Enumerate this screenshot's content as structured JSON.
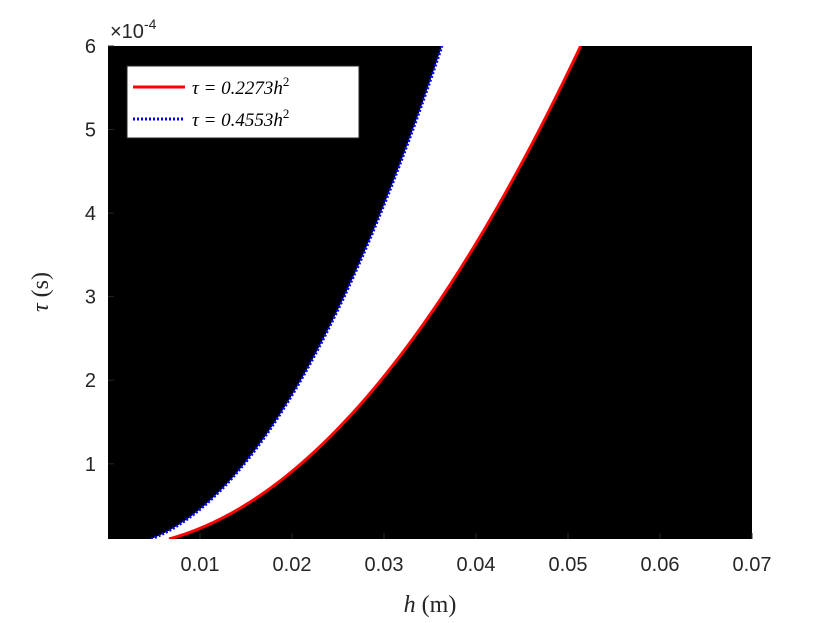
{
  "chart_data": {
    "type": "area",
    "xlabel_var": "h",
    "xlabel_unit": "(m)",
    "ylabel_var": "τ",
    "ylabel_unit": "(s)",
    "y_exponent_prefix": "×10",
    "y_exponent_power": "-4",
    "xlim": [
      0,
      0.07
    ],
    "ylim": [
      1e-05,
      0.0006
    ],
    "x_ticks": [
      0.01,
      0.02,
      0.03,
      0.04,
      0.05,
      0.06,
      0.07
    ],
    "x_tick_labels": [
      "0.01",
      "0.02",
      "0.03",
      "0.04",
      "0.05",
      "0.06",
      "0.07"
    ],
    "y_ticks": [
      0.0001,
      0.0002,
      0.0003,
      0.0004,
      0.0005,
      0.0006
    ],
    "y_tick_labels": [
      "1",
      "2",
      "3",
      "4",
      "5",
      "6"
    ],
    "background_region_color": "#000000",
    "stable_region_color": "#ffffff",
    "series": [
      {
        "name": "τ = 0.2273h²",
        "legend_prefix": "τ = 0.2273",
        "legend_var": "h",
        "legend_sup": "2",
        "coefficient": 0.2273,
        "style": "solid",
        "color": "#ff0000"
      },
      {
        "name": "τ = 0.4553h²",
        "legend_prefix": "τ = 0.4553",
        "legend_var": "h",
        "legend_sup": "2",
        "coefficient": 0.4553,
        "style": "dotted",
        "color": "#0000ff"
      }
    ],
    "legend_location": "top-left",
    "grid": false
  }
}
